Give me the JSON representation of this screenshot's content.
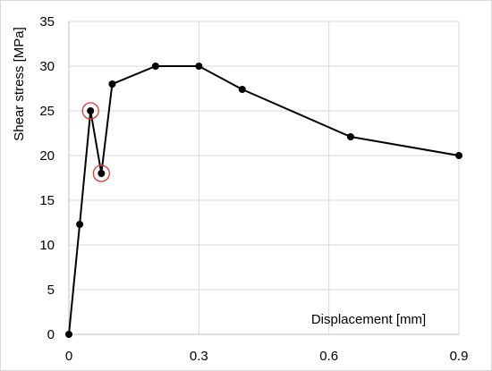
{
  "chart_data": {
    "type": "line",
    "title": "",
    "xlabel": "Displacement [mm]",
    "ylabel": "Shear stress [MPa]",
    "xlim": [
      0,
      0.9
    ],
    "ylim": [
      0,
      35
    ],
    "x_ticks": [
      0,
      0.3,
      0.6,
      0.9
    ],
    "x_tick_labels": [
      "0",
      "0.3",
      "0.6",
      "0.9"
    ],
    "y_ticks": [
      0,
      5,
      10,
      15,
      20,
      25,
      30,
      35
    ],
    "y_tick_labels": [
      "0",
      "5",
      "10",
      "15",
      "20",
      "25",
      "30",
      "35"
    ],
    "grid": true,
    "legend": "none",
    "colors": {
      "line": "#000000",
      "marker": "#000000",
      "highlight": "#e0362c",
      "grid": "#d9d9d9"
    },
    "series": [
      {
        "x": [
          0,
          0.025,
          0.05,
          0.075,
          0.1,
          0.2,
          0.3,
          0.4,
          0.65,
          0.9
        ],
        "y": [
          0,
          12.3,
          25,
          18,
          28,
          30,
          30,
          27.4,
          22.1,
          20
        ]
      }
    ],
    "highlighted_points": [
      {
        "x": 0.05,
        "y": 25
      },
      {
        "x": 0.075,
        "y": 18
      }
    ]
  }
}
